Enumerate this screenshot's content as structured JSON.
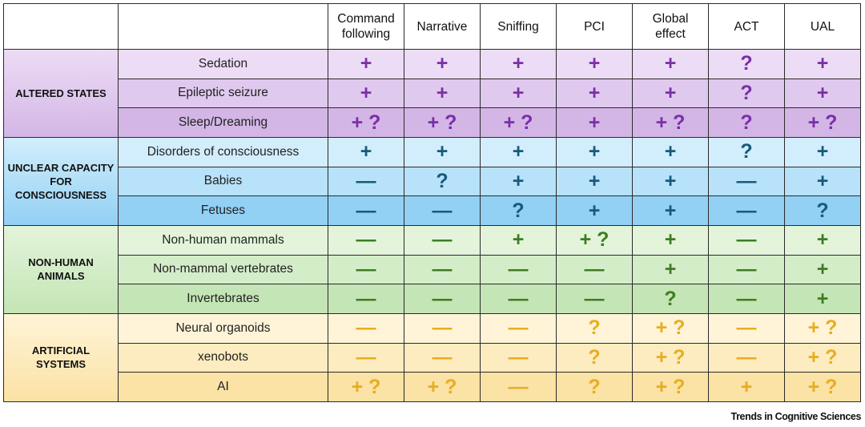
{
  "columns": [
    "",
    "",
    "Command following",
    "Narrative",
    "Sniffing",
    "PCI",
    "Global effect",
    "ACT",
    "UAL"
  ],
  "groups": [
    {
      "label": "ALTERED STATES",
      "bg": "#eddcf5",
      "bg_alt": "#e0c9ee",
      "bg_last": "#d3b6e6",
      "symbol_color": "#7b2fa8",
      "rows": [
        {
          "label": "Sedation",
          "values": [
            "+",
            "+",
            "+",
            "+",
            "+",
            "?",
            "+"
          ]
        },
        {
          "label": "Epileptic seizure",
          "values": [
            "+",
            "+",
            "+",
            "+",
            "+",
            "?",
            "+"
          ]
        },
        {
          "label": "Sleep/Dreaming",
          "values": [
            "+ ?",
            "+ ?",
            "+ ?",
            "+",
            "+ ?",
            "?",
            "+ ?"
          ]
        }
      ]
    },
    {
      "label": "UNCLEAR CAPACITY FOR CONSCIOUSNESS",
      "bg": "#d2eefc",
      "bg_alt": "#b7e2f9",
      "bg_last": "#92d0f4",
      "symbol_color": "#175a7a",
      "rows": [
        {
          "label": "Disorders of consciousness",
          "values": [
            "+",
            "+",
            "+",
            "+",
            "+",
            "?",
            "+"
          ]
        },
        {
          "label": "Babies",
          "values": [
            "—",
            "?",
            "+",
            "+",
            "+",
            "—",
            "+"
          ]
        },
        {
          "label": "Fetuses",
          "values": [
            "—",
            "—",
            "?",
            "+",
            "+",
            "—",
            "?"
          ]
        }
      ]
    },
    {
      "label": "NON-HUMAN ANIMALS",
      "bg": "#e3f4db",
      "bg_alt": "#d4edc9",
      "bg_last": "#c4e5b5",
      "symbol_color": "#3f7d22",
      "rows": [
        {
          "label": "Non-human mammals",
          "values": [
            "—",
            "—",
            "+",
            "+ ?",
            "+",
            "—",
            "+"
          ]
        },
        {
          "label": "Non-mammal vertebrates",
          "values": [
            "—",
            "—",
            "—",
            "—",
            "+",
            "—",
            "+"
          ]
        },
        {
          "label": "Invertebrates",
          "values": [
            "—",
            "—",
            "—",
            "—",
            "?",
            "—",
            "+"
          ]
        }
      ]
    },
    {
      "label": "ARTIFICIAL SYSTEMS",
      "bg": "#fff4d7",
      "bg_alt": "#fdecc0",
      "bg_last": "#fbe2a5",
      "symbol_color": "#e8ad1f",
      "rows": [
        {
          "label": "Neural organoids",
          "values": [
            "—",
            "—",
            "—",
            "?",
            "+ ?",
            "—",
            "+ ?"
          ]
        },
        {
          "label": "xenobots",
          "values": [
            "—",
            "—",
            "—",
            "?",
            "+ ?",
            "—",
            "+ ?"
          ]
        },
        {
          "label": "AI",
          "values": [
            "+ ?",
            "+ ?",
            "—",
            "?",
            "+ ?",
            "+",
            "+ ?"
          ]
        }
      ]
    }
  ],
  "credit": "Trends in Cognitive Sciences"
}
